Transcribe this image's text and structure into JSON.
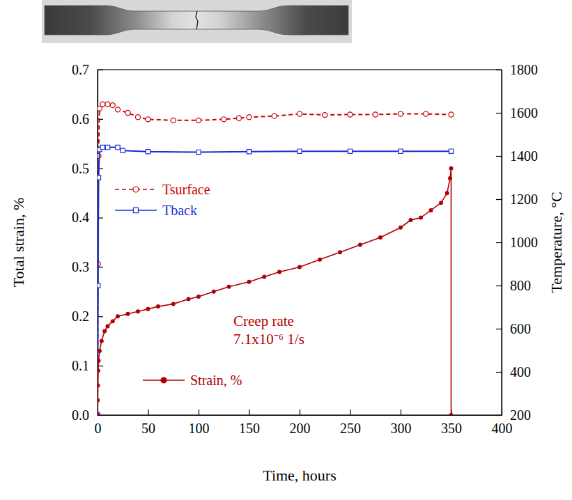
{
  "chart_data": {
    "type": "line",
    "x_label": "Time, hours",
    "y_label": "Total strain, %",
    "y2_label": "Temperature, °C",
    "xlim": [
      0,
      400
    ],
    "xticks": [
      0,
      50,
      100,
      150,
      200,
      250,
      300,
      350,
      400
    ],
    "ylim": [
      0,
      0.7
    ],
    "yticks": [
      {
        "value": 0,
        "label": "0.0"
      },
      0.1,
      0.2,
      0.3,
      0.4,
      0.5,
      0.6,
      0.7
    ],
    "y2lim": [
      200,
      1800
    ],
    "y2ticks": [
      200,
      400,
      600,
      800,
      1000,
      1200,
      1400,
      1600,
      1800
    ],
    "grid": false,
    "legend": "left",
    "annotations": [
      "Creep rate",
      "7.1x10⁻⁶ 1/s"
    ],
    "series": [
      {
        "name": "Tsurface",
        "color": "#cc0000",
        "axis": "y2",
        "marker": "open_circle",
        "line_style": "dashed",
        "x": [
          0,
          0.5,
          1,
          2,
          5,
          10,
          15,
          20,
          30,
          40,
          50,
          75,
          100,
          125,
          140,
          150,
          175,
          200,
          225,
          250,
          275,
          300,
          325,
          350
        ],
        "values": [
          200,
          900,
          1400,
          1620,
          1640,
          1640,
          1635,
          1615,
          1600,
          1580,
          1570,
          1565,
          1565,
          1570,
          1575,
          1580,
          1585,
          1595,
          1590,
          1592,
          1592,
          1595,
          1595,
          1592
        ]
      },
      {
        "name": "Tback",
        "color": "#1a2fd6",
        "axis": "y2",
        "marker": "open_square",
        "line_style": "solid",
        "x": [
          0,
          0.5,
          1,
          2,
          5,
          10,
          20,
          25,
          50,
          100,
          150,
          200,
          250,
          300,
          350
        ],
        "values": [
          200,
          800,
          1300,
          1430,
          1440,
          1440,
          1440,
          1425,
          1420,
          1418,
          1420,
          1422,
          1422,
          1422,
          1422
        ]
      },
      {
        "name": "Strain, %",
        "color": "#b00000",
        "axis": "y",
        "marker": "circle",
        "line_style": "solid",
        "x": [
          0,
          0.1,
          0.3,
          0.6,
          1,
          2,
          4,
          7,
          10,
          15,
          20,
          30,
          40,
          50,
          60,
          75,
          90,
          100,
          115,
          130,
          150,
          165,
          180,
          200,
          220,
          240,
          260,
          280,
          300,
          310,
          320,
          330,
          340,
          346,
          349,
          350,
          350
        ],
        "values": [
          0,
          0.03,
          0.06,
          0.09,
          0.11,
          0.13,
          0.15,
          0.17,
          0.18,
          0.19,
          0.2,
          0.205,
          0.21,
          0.215,
          0.22,
          0.225,
          0.235,
          0.24,
          0.25,
          0.26,
          0.27,
          0.28,
          0.29,
          0.3,
          0.315,
          0.33,
          0.345,
          0.36,
          0.38,
          0.395,
          0.4,
          0.415,
          0.43,
          0.45,
          0.48,
          0.5,
          0
        ]
      }
    ]
  }
}
